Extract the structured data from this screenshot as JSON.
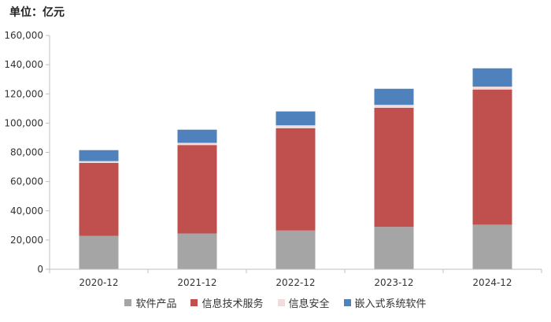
{
  "chart_data": {
    "type": "bar",
    "stacked": true,
    "unit_label": "单位：亿元",
    "categories": [
      "2020-12",
      "2021-12",
      "2022-12",
      "2023-12",
      "2024-12"
    ],
    "series": [
      {
        "name": "软件产品",
        "color": "#a5a5a5",
        "values": [
          22800,
          24500,
          26500,
          29000,
          30500
        ]
      },
      {
        "name": "信息技术服务",
        "color": "#c0504d",
        "values": [
          50000,
          60500,
          70000,
          81500,
          92500
        ]
      },
      {
        "name": "信息安全",
        "color": "#f2dcdb",
        "values": [
          1200,
          1500,
          2000,
          2000,
          2000
        ]
      },
      {
        "name": "嵌入式系统软件",
        "color": "#4f81bd",
        "values": [
          7500,
          9000,
          9500,
          11000,
          12500
        ]
      }
    ],
    "ylim": [
      0,
      160000
    ],
    "yticks": [
      0,
      20000,
      40000,
      60000,
      80000,
      100000,
      120000,
      140000,
      160000
    ],
    "ytick_labels": [
      "0",
      "20,000",
      "40,000",
      "60,000",
      "80,000",
      "100,000",
      "120,000",
      "140,000",
      "160,000"
    ],
    "grid": false,
    "legend_position": "bottom"
  }
}
